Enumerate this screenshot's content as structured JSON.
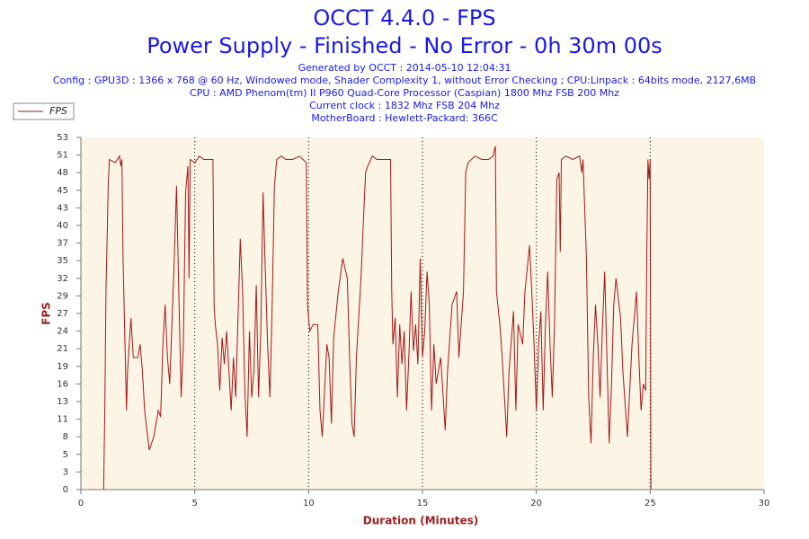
{
  "chart_data": {
    "type": "line",
    "title": "OCCT 4.4.0 - FPS",
    "subtitle": "Power Supply - Finished - No Error - 0h 30m 00s",
    "info": [
      "Generated by OCCT : 2014-05-10 12:04:31",
      "Config : GPU3D : 1366 x 768 @ 60 Hz, Windowed mode, Shader Complexity 1, without Error Checking ; CPU:Linpack : 64bits mode, 2127,6MB",
      "CPU : AMD Phenom(tm) II P960 Quad-Core Processor (Caspian) 1800 Mhz FSB 200 Mhz",
      "Current clock : 1832 Mhz FSB 204 Mhz",
      "MotherBoard : Hewlett-Packard: 366C"
    ],
    "xlabel": "Duration (Minutes)",
    "ylabel": "FPS",
    "xlim": [
      0,
      30
    ],
    "xticks": [
      0,
      5,
      10,
      15,
      20,
      25,
      30
    ],
    "ylim": [
      0,
      53.33
    ],
    "yticks": [
      0,
      {
        "value": 2.67,
        "label": "3"
      },
      {
        "value": 5.33,
        "label": "5"
      },
      8,
      {
        "value": 10.67,
        "label": "11"
      },
      {
        "value": 13.33,
        "label": "13"
      },
      16,
      {
        "value": 18.67,
        "label": "19"
      },
      {
        "value": 21.33,
        "label": "21"
      },
      24,
      {
        "value": 26.67,
        "label": "27"
      },
      {
        "value": 29.33,
        "label": "29"
      },
      32,
      {
        "value": 34.67,
        "label": "35"
      },
      {
        "value": 37.33,
        "label": "37"
      },
      40,
      {
        "value": 42.67,
        "label": "43"
      },
      {
        "value": 45.33,
        "label": "45"
      },
      48,
      {
        "value": 50.67,
        "label": "51"
      },
      {
        "value": 53.33,
        "label": "53"
      }
    ],
    "grid": true,
    "legend": "top-left",
    "x": [
      1.0,
      1.05,
      1.1,
      1.2,
      1.25,
      1.5,
      1.7,
      1.75,
      1.8,
      1.85,
      1.95,
      2.0,
      2.05,
      2.2,
      2.3,
      2.5,
      2.6,
      2.7,
      2.8,
      3.0,
      3.2,
      3.4,
      3.5,
      3.6,
      3.7,
      3.8,
      3.9,
      4.0,
      4.1,
      4.2,
      4.3,
      4.4,
      4.5,
      4.6,
      4.7,
      4.75,
      4.8,
      5.0,
      5.2,
      5.4,
      5.6,
      5.8,
      5.85,
      5.9,
      6.0,
      6.1,
      6.2,
      6.3,
      6.4,
      6.5,
      6.6,
      6.7,
      6.8,
      7.0,
      7.1,
      7.2,
      7.3,
      7.4,
      7.5,
      7.6,
      7.7,
      7.8,
      7.9,
      8.0,
      8.1,
      8.2,
      8.3,
      8.4,
      8.5,
      8.6,
      8.8,
      9.0,
      9.3,
      9.6,
      9.9,
      9.95,
      10.05,
      10.2,
      10.4,
      10.5,
      10.6,
      10.7,
      10.8,
      10.9,
      11.0,
      11.1,
      11.3,
      11.5,
      11.7,
      11.8,
      11.9,
      12.0,
      12.1,
      12.3,
      12.4,
      12.5,
      12.6,
      12.8,
      13.0,
      13.3,
      13.6,
      13.65,
      13.7,
      13.8,
      13.9,
      14.0,
      14.1,
      14.2,
      14.3,
      14.4,
      14.5,
      14.6,
      14.7,
      14.8,
      14.9,
      15.0,
      15.1,
      15.2,
      15.3,
      15.4,
      15.5,
      15.6,
      15.8,
      16.0,
      16.1,
      16.3,
      16.5,
      16.6,
      16.8,
      16.9,
      17.0,
      17.3,
      17.6,
      17.9,
      18.1,
      18.2,
      18.25,
      18.4,
      18.5,
      18.6,
      18.7,
      18.8,
      19.0,
      19.1,
      19.2,
      19.4,
      19.5,
      19.7,
      19.8,
      19.9,
      20.0,
      20.1,
      20.2,
      20.3,
      20.4,
      20.5,
      20.6,
      20.7,
      20.8,
      20.9,
      21.0,
      21.05,
      21.1,
      21.3,
      21.6,
      21.9,
      22.0,
      22.05,
      22.2,
      22.3,
      22.4,
      22.5,
      22.6,
      22.7,
      22.8,
      22.9,
      23.0,
      23.1,
      23.2,
      23.3,
      23.4,
      23.5,
      23.7,
      23.8,
      24.0,
      24.2,
      24.4,
      24.5,
      24.6,
      24.7,
      24.8,
      24.85,
      24.9,
      24.95,
      25.0,
      25.03
    ],
    "series": [
      {
        "name": "FPS",
        "color": "#a01818",
        "values": [
          0,
          12,
          30,
          46,
          50,
          49.5,
          50.5,
          49,
          50,
          35,
          20,
          12,
          18,
          26,
          20,
          20,
          22,
          18,
          12,
          6,
          8,
          12,
          11,
          22,
          28,
          20,
          16,
          25,
          35,
          46,
          30,
          14,
          22,
          45,
          49,
          32,
          50,
          49.5,
          50.5,
          50,
          50,
          50,
          28,
          25,
          22,
          15,
          23,
          19,
          24,
          18,
          12,
          20,
          14,
          38,
          30,
          15,
          8,
          24,
          14,
          18,
          31,
          14,
          24,
          45,
          33,
          22,
          14,
          28,
          46,
          50,
          50.5,
          50,
          50,
          50.5,
          49.5,
          28,
          24,
          25,
          25,
          12,
          8,
          15,
          22,
          20,
          10,
          23,
          30,
          35,
          32,
          20,
          10,
          8,
          20,
          32,
          40,
          48,
          49,
          50.5,
          50,
          50,
          50,
          30,
          22,
          26,
          14,
          25,
          19,
          24,
          12,
          20,
          30,
          21,
          25,
          19,
          35,
          20,
          24,
          33,
          28,
          12,
          22,
          16,
          20,
          9,
          18,
          28,
          30,
          20,
          30,
          48,
          49.5,
          50.5,
          50,
          50,
          50.5,
          52,
          30,
          25,
          20,
          14,
          8,
          18,
          27,
          12,
          25,
          22,
          30,
          37,
          30,
          22,
          12,
          22,
          27,
          12,
          25,
          33,
          22,
          14,
          25,
          47,
          48,
          36,
          50,
          50.5,
          50,
          50.5,
          48,
          50,
          35,
          14,
          7,
          20,
          28,
          22,
          14,
          24,
          33,
          20,
          7,
          16,
          28,
          32,
          26,
          18,
          8,
          22,
          30,
          20,
          12,
          16,
          15,
          35,
          50,
          47,
          50,
          0
        ]
      }
    ]
  }
}
